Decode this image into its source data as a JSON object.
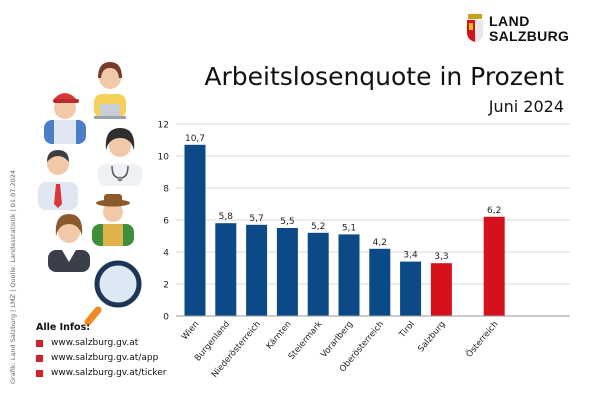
{
  "logo": {
    "line1": "LAND",
    "line2": "SALZBURG"
  },
  "header": {
    "title": "Arbeitslosenquote in Prozent",
    "subtitle": "Juni 2024"
  },
  "credit": "Grafik: Land Salzburg | LMZ  |  Quelle: Landesstatistik  |  01.07.2024",
  "info": {
    "title": "Alle Infos:",
    "links": [
      "www.salzburg.gv.at",
      "www.salzburg.gv.at/app",
      "www.salzburg.gv.at/ticker"
    ]
  },
  "colors": {
    "blue": "#0c4a87",
    "red": "#d4111c",
    "grid": "#d9d9d9"
  },
  "chart_data": {
    "type": "bar",
    "title": "Arbeitslosenquote in Prozent",
    "subtitle": "Juni 2024",
    "xlabel": "",
    "ylabel": "",
    "ylim": [
      0,
      12
    ],
    "yticks": [
      0,
      2,
      4,
      6,
      8,
      10,
      12
    ],
    "grid": true,
    "categories": [
      "Wien",
      "Burgenland",
      "Niederösterreich",
      "Kärnten",
      "Steiermark",
      "Vorarlberg",
      "Oberösterreich",
      "Tirol",
      "Salzburg",
      "Österreich"
    ],
    "values": [
      10.7,
      5.8,
      5.7,
      5.5,
      5.2,
      5.1,
      4.2,
      3.4,
      3.3,
      6.2
    ],
    "labels": [
      "10,7",
      "5,8",
      "5,7",
      "5,5",
      "5,2",
      "5,1",
      "4,2",
      "3,4",
      "3,3",
      "6,2"
    ],
    "highlight": [
      "Salzburg",
      "Österreich"
    ]
  }
}
